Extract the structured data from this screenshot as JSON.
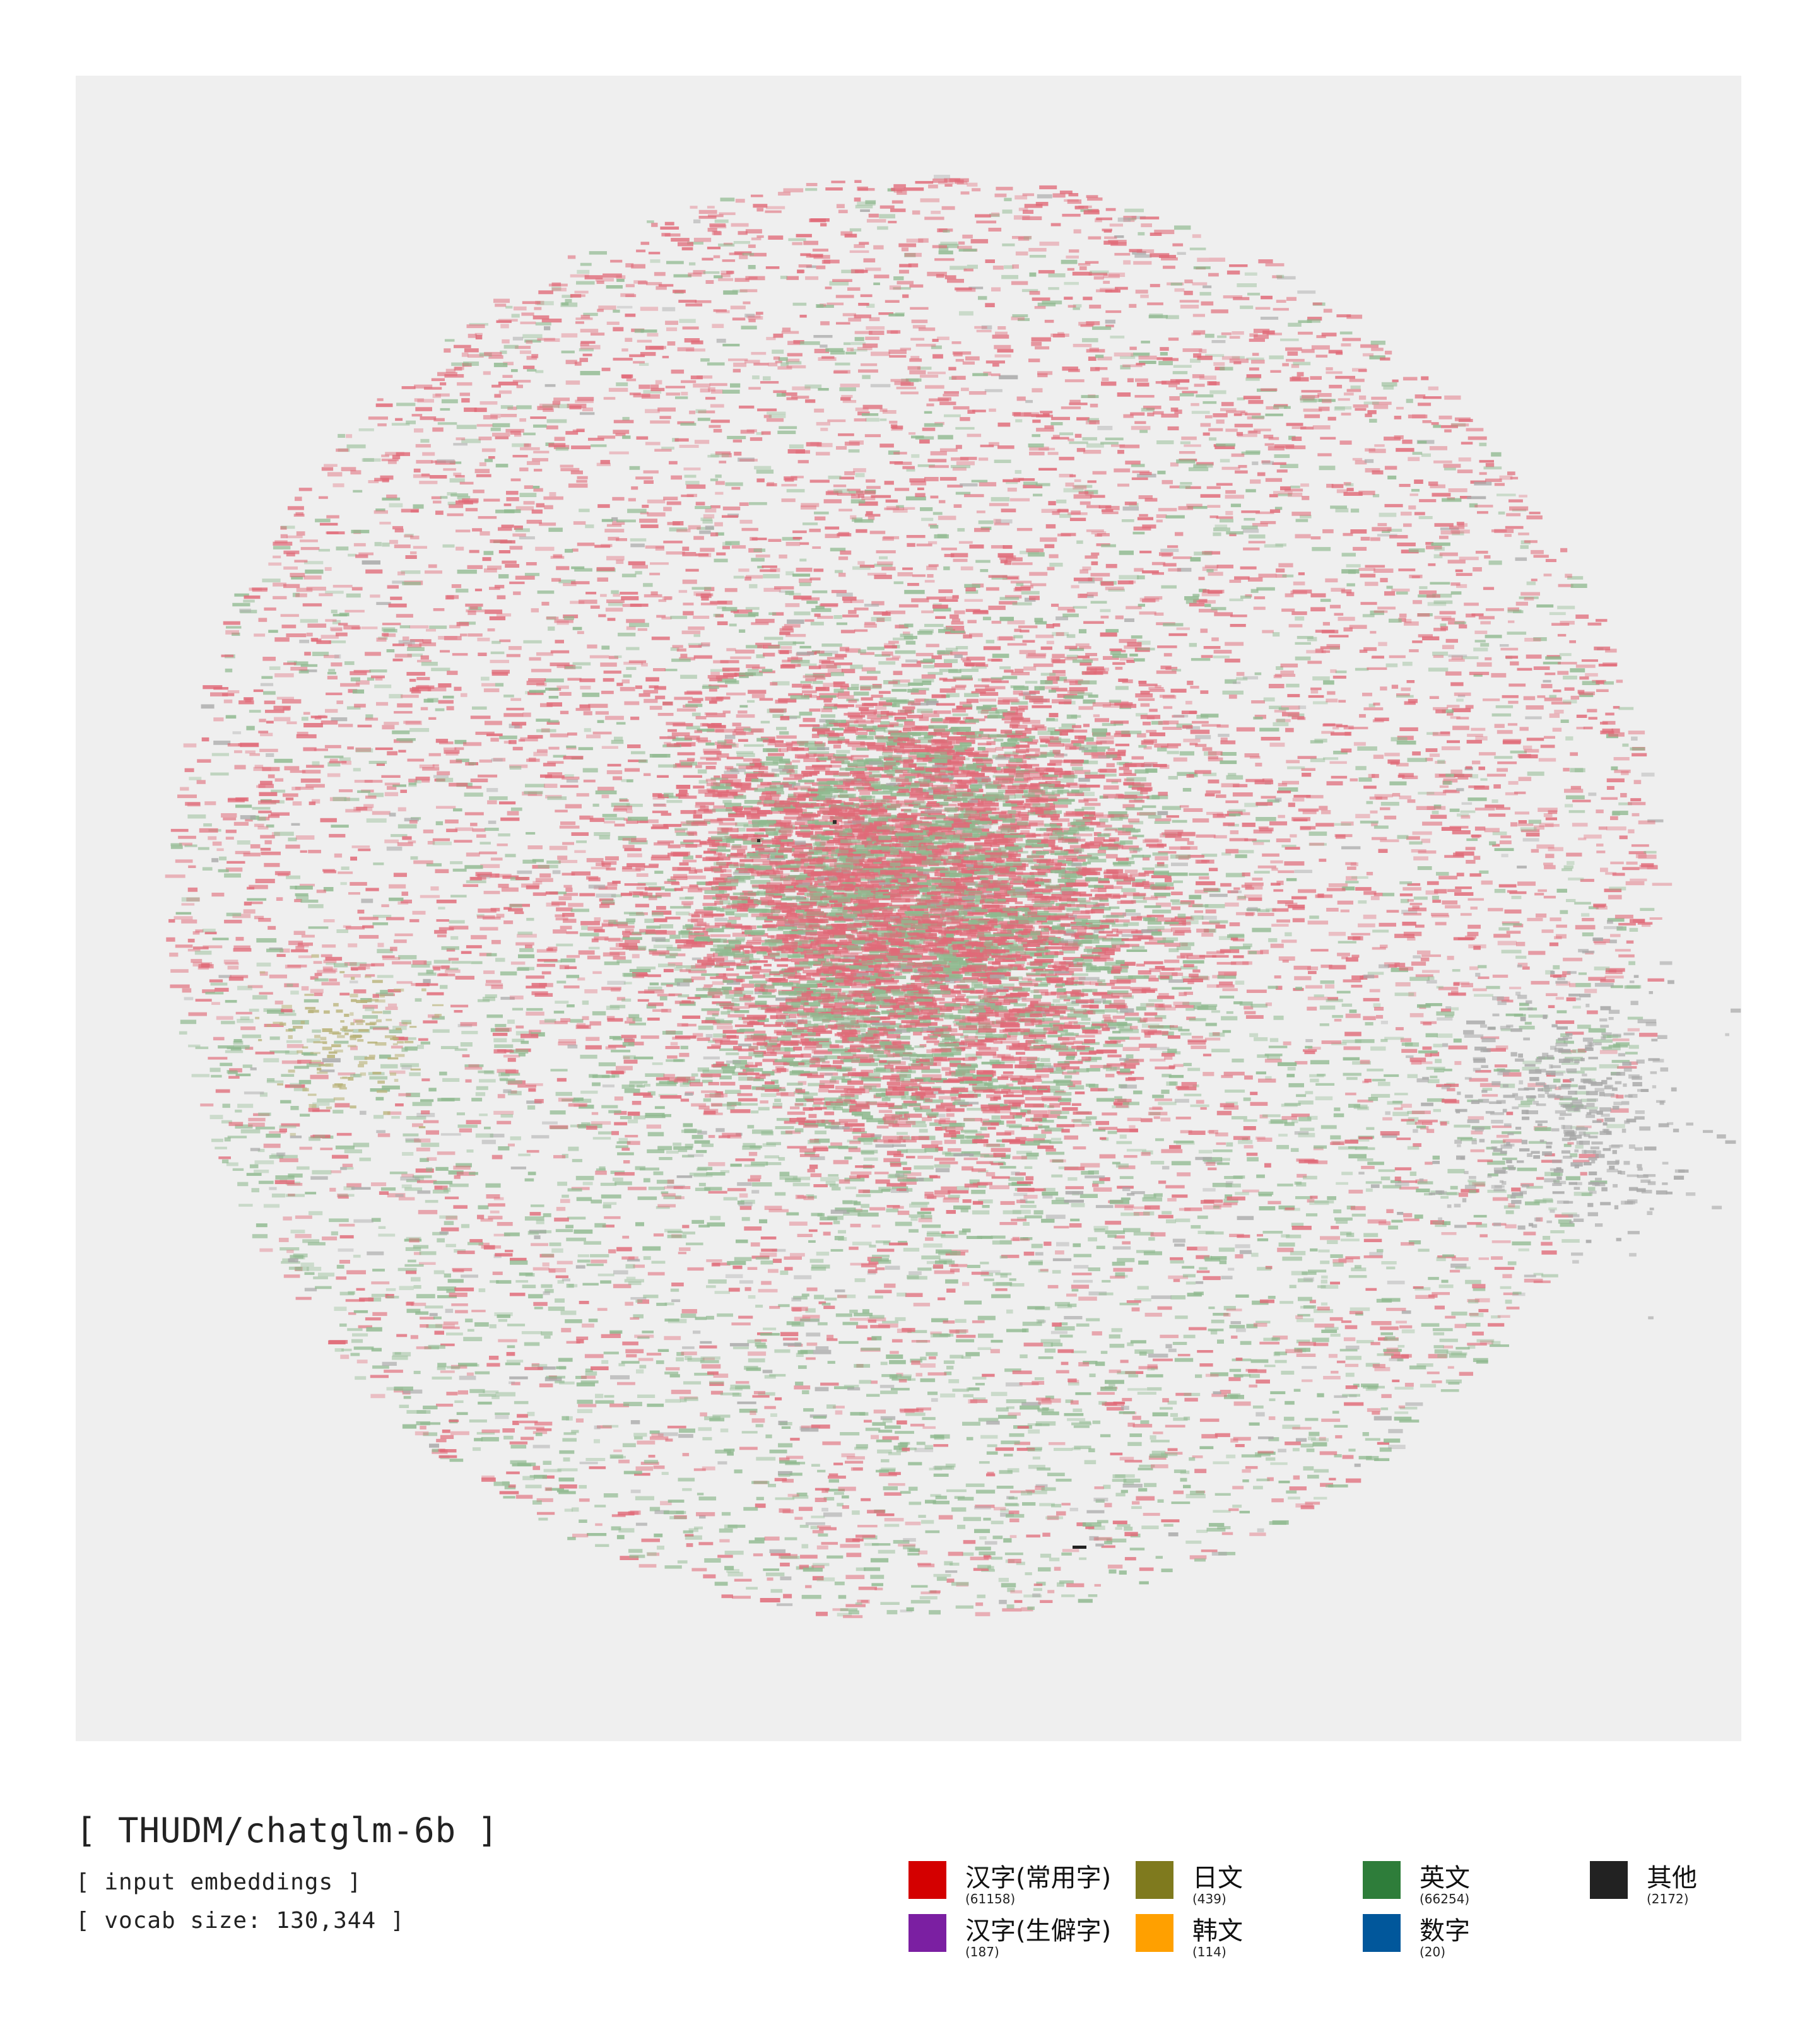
{
  "title": "[ THUDM/chatglm-6b ]",
  "subtitle_1": "[ input embeddings ]",
  "subtitle_2": "[ vocab size: 130,344 ]",
  "legend": [
    {
      "label": "汉字(常用字)",
      "count": "(61158)",
      "color": "#d40000"
    },
    {
      "label": "日文",
      "count": "(439)",
      "color": "#7f7a1e"
    },
    {
      "label": "英文",
      "count": "(66254)",
      "color": "#2e7d3a"
    },
    {
      "label": "其他",
      "count": "(2172)",
      "color": "#222222"
    },
    {
      "label": "汉字(生僻字)",
      "count": "(187)",
      "color": "#7b1fa2"
    },
    {
      "label": "韩文",
      "count": "(114)",
      "color": "#ffa000"
    },
    {
      "label": "数字",
      "count": "(20)",
      "color": "#01579b"
    }
  ],
  "chart_data": {
    "type": "scatter",
    "title": "[ THUDM/chatglm-6b ]",
    "series": [
      {
        "name": "汉字(常用字)",
        "count": 61158,
        "color": "#d40000"
      },
      {
        "name": "汉字(生僻字)",
        "count": 187,
        "color": "#7b1fa2"
      },
      {
        "name": "日文",
        "count": 439,
        "color": "#7f7a1e"
      },
      {
        "name": "韩文",
        "count": 114,
        "color": "#ffa000"
      },
      {
        "name": "英文",
        "count": 66254,
        "color": "#2e7d3a"
      },
      {
        "name": "数字",
        "count": 20,
        "color": "#01579b"
      },
      {
        "name": "其他",
        "count": 2172,
        "color": "#222222"
      }
    ],
    "background": "#efefef",
    "grid": false,
    "axes": false,
    "legend_position": "bottom-right"
  }
}
